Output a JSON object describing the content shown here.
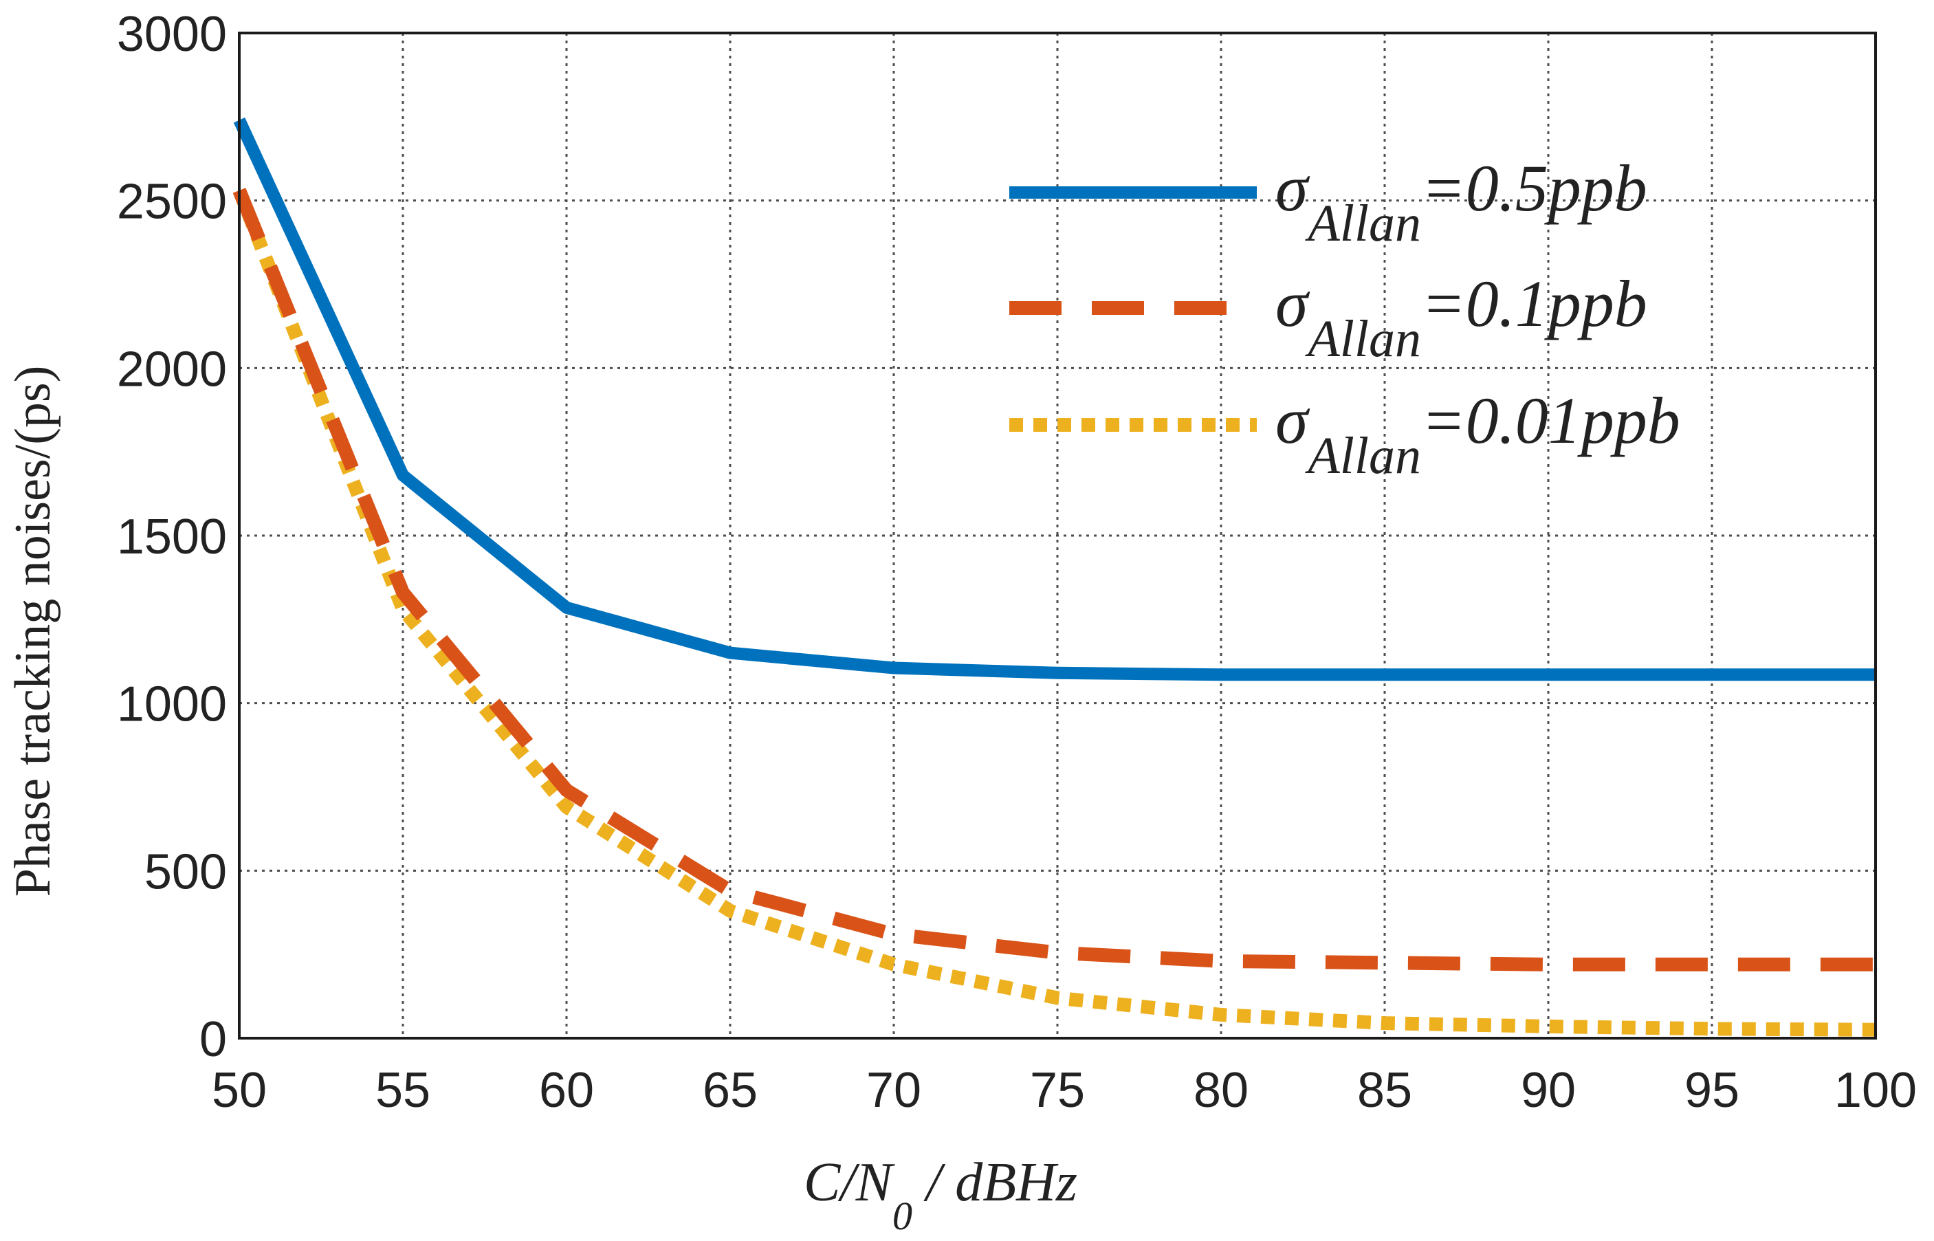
{
  "chart_data": {
    "type": "line",
    "title": "",
    "xlabel": {
      "prefix": "C/N",
      "subscript": "0",
      "suffix": " / dBHz"
    },
    "ylabel": "Phase tracking noises/(ps)",
    "xlim": [
      50,
      100
    ],
    "ylim": [
      0,
      3000
    ],
    "x_ticks": [
      50,
      55,
      60,
      65,
      70,
      75,
      80,
      85,
      90,
      95,
      100
    ],
    "y_ticks": [
      0,
      500,
      1000,
      1500,
      2000,
      2500,
      3000
    ],
    "grid": true,
    "legend_position": "top-right",
    "x": [
      50,
      55,
      60,
      65,
      70,
      75,
      80,
      85,
      90,
      95,
      100
    ],
    "series": [
      {
        "name": "σAllan=0.5ppb",
        "legend_symbol": "σ",
        "legend_sub": "Allan",
        "legend_value": "=0.5ppb",
        "style": "solid",
        "color": "#0072BD",
        "values": [
          2740,
          1680,
          1285,
          1150,
          1105,
          1090,
          1085,
          1085,
          1085,
          1085,
          1085
        ]
      },
      {
        "name": "σAllan=0.1ppb",
        "legend_symbol": "σ",
        "legend_sub": "Allan",
        "legend_value": "=0.1ppb",
        "style": "dashed",
        "color": "#D95319",
        "values": [
          2530,
          1330,
          740,
          440,
          310,
          255,
          230,
          225,
          220,
          220,
          220
        ]
      },
      {
        "name": "σAllan=0.01ppb",
        "legend_symbol": "σ",
        "legend_sub": "Allan",
        "legend_value": "=0.01ppb",
        "style": "dotted",
        "color": "#EDB120",
        "values": [
          2530,
          1280,
          690,
          380,
          220,
          120,
          70,
          45,
          35,
          28,
          25
        ]
      }
    ]
  }
}
